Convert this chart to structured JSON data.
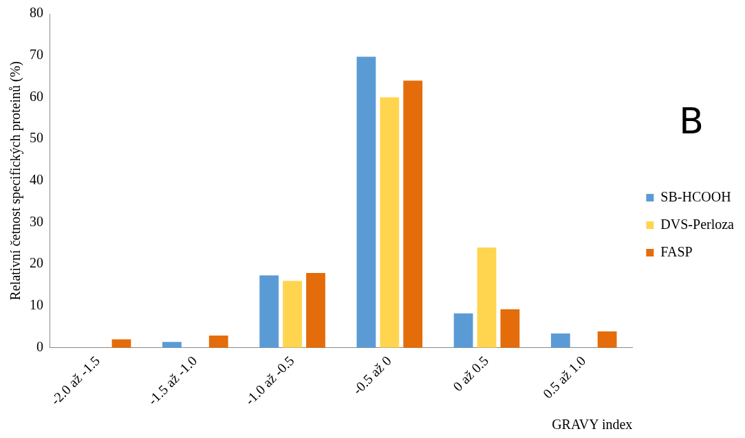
{
  "chart_data": {
    "type": "bar",
    "xlabel": "GRAVY index",
    "ylabel": "Relativní četnost specifických proteinů (%)",
    "annotations": [
      "B"
    ],
    "categories": [
      "-2.0 až -1.5",
      "-1.5 až -1.0",
      "-1.0 až -0.5",
      "-0.5 až 0",
      "0 až 0.5",
      "0.5 až 1.0"
    ],
    "series": [
      {
        "name": "SB-HCOOH",
        "color": "#5b9bd5",
        "values": [
          0,
          1.4,
          17.3,
          69.7,
          8.2,
          3.4
        ]
      },
      {
        "name": "DVS-Perloza",
        "color": "#ffd54f",
        "values": [
          0,
          0,
          16,
          60,
          24,
          0
        ]
      },
      {
        "name": "FASP",
        "color": "#e46c0a",
        "values": [
          2,
          2.9,
          17.9,
          64,
          9.2,
          3.9
        ]
      }
    ],
    "ylim": [
      0,
      80
    ],
    "yticks": [
      0,
      10,
      20,
      30,
      40,
      50,
      60,
      70,
      80
    ],
    "grid": false,
    "legend": "right"
  }
}
